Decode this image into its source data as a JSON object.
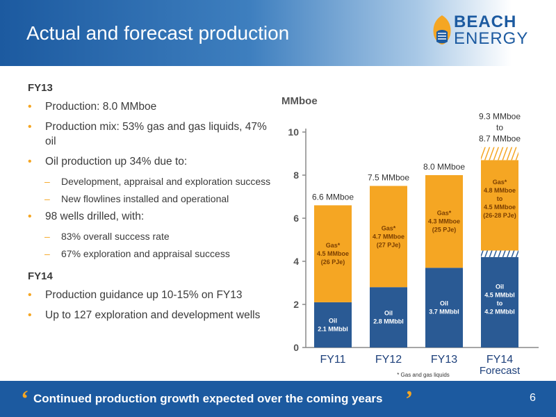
{
  "slide": {
    "title": "Actual and forecast production",
    "page_number": "6",
    "logo": {
      "line1": "BEACH",
      "line2": "ENERGY"
    }
  },
  "left_panel": {
    "fy13_heading": "FY13",
    "fy13_bullets": [
      "Production: 8.0 MMboe",
      "Production mix: 53% gas and gas liquids, 47% oil",
      "Oil production up 34% due to:"
    ],
    "oil_reasons": [
      "Development, appraisal and exploration success",
      "New flowlines installed and operational"
    ],
    "wells_bullet": "98 wells drilled, with:",
    "wells_sub": [
      "83% overall success rate",
      "67% exploration and appraisal success"
    ],
    "fy14_heading": "FY14",
    "fy14_bullets": [
      "Production guidance up 10-15% on FY13",
      "Up to 127 exploration and development wells"
    ]
  },
  "footer": {
    "quote_open": "‘",
    "text": "Continued production growth expected over the coming years",
    "quote_close": "’"
  },
  "chart_data": {
    "type": "bar",
    "stacked": true,
    "ylabel": "MMboe",
    "ylim": [
      0,
      10
    ],
    "yticks": [
      0,
      2,
      4,
      6,
      8,
      10
    ],
    "categories": [
      "FY11",
      "FY12",
      "FY13",
      "FY14"
    ],
    "category_sublabels": [
      "",
      "",
      "",
      "Forecast"
    ],
    "series": [
      {
        "name": "Oil",
        "color": "#2a5a94",
        "values": [
          2.1,
          2.8,
          3.7,
          4.5
        ],
        "labels": [
          [
            "Oil",
            "2.1 MMbbl"
          ],
          [
            "Oil",
            "2.8 MMbbl"
          ],
          [
            "Oil",
            "3.7 MMbbl"
          ],
          [
            "Oil",
            "4.5 MMbbl",
            "to",
            "4.2 MMbbl"
          ]
        ]
      },
      {
        "name": "Gas*",
        "color": "#f5a623",
        "values": [
          4.5,
          4.7,
          4.3,
          4.8
        ],
        "labels": [
          [
            "Gas*",
            "4.5 MMboe",
            "(26 PJe)"
          ],
          [
            "Gas*",
            "4.7 MMboe",
            "(27 PJe)"
          ],
          [
            "Gas*",
            "4.3 MMboe",
            "(25 PJe)"
          ],
          [
            "Gas*",
            "4.8 MMboe",
            "to",
            "4.5 MMboe",
            "(26-28 PJe)"
          ]
        ]
      }
    ],
    "totals_labels": [
      [
        "6.6 MMboe"
      ],
      [
        "7.5 MMboe"
      ],
      [
        "8.0 MMboe"
      ],
      [
        "9.3 MMboe",
        "to",
        "8.7 MMboe"
      ]
    ],
    "forecast_ranges": {
      "oil": {
        "low": 4.2,
        "high": 4.5
      },
      "total": {
        "low": 8.7,
        "high": 9.3
      }
    },
    "footnote": "* Gas and gas liquids",
    "grid": false
  }
}
